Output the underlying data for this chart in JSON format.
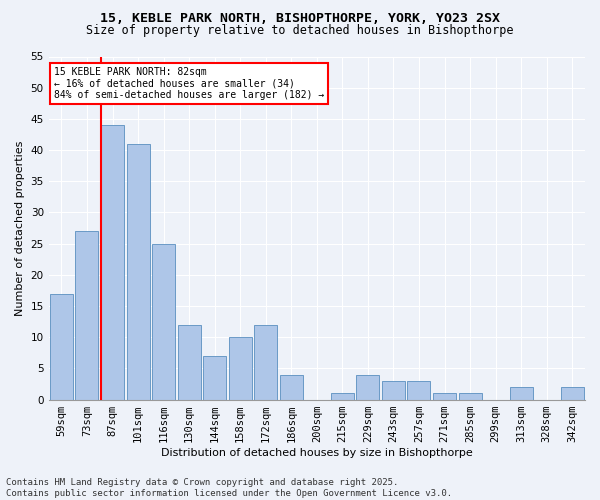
{
  "title1": "15, KEBLE PARK NORTH, BISHOPTHORPE, YORK, YO23 2SX",
  "title2": "Size of property relative to detached houses in Bishopthorpe",
  "xlabel": "Distribution of detached houses by size in Bishopthorpe",
  "ylabel": "Number of detached properties",
  "footnote1": "Contains HM Land Registry data © Crown copyright and database right 2025.",
  "footnote2": "Contains public sector information licensed under the Open Government Licence v3.0.",
  "categories": [
    "59sqm",
    "73sqm",
    "87sqm",
    "101sqm",
    "116sqm",
    "130sqm",
    "144sqm",
    "158sqm",
    "172sqm",
    "186sqm",
    "200sqm",
    "215sqm",
    "229sqm",
    "243sqm",
    "257sqm",
    "271sqm",
    "285sqm",
    "299sqm",
    "313sqm",
    "328sqm",
    "342sqm"
  ],
  "values": [
    17,
    27,
    44,
    41,
    25,
    12,
    7,
    10,
    12,
    4,
    0,
    1,
    4,
    3,
    3,
    1,
    1,
    0,
    2,
    0,
    2
  ],
  "bar_color": "#aec6e8",
  "bar_edge_color": "#5a8fc0",
  "vline_color": "red",
  "vline_x_index": 2,
  "annotation_text": "15 KEBLE PARK NORTH: 82sqm\n← 16% of detached houses are smaller (34)\n84% of semi-detached houses are larger (182) →",
  "annotation_box_color": "white",
  "annotation_box_edge": "red",
  "ylim": [
    0,
    55
  ],
  "yticks": [
    0,
    5,
    10,
    15,
    20,
    25,
    30,
    35,
    40,
    45,
    50,
    55
  ],
  "bg_color": "#eef2f9",
  "grid_color": "white",
  "title1_fontsize": 9.5,
  "title2_fontsize": 8.5,
  "axis_label_fontsize": 8,
  "tick_fontsize": 7.5,
  "annotation_fontsize": 7,
  "footnote_fontsize": 6.5
}
